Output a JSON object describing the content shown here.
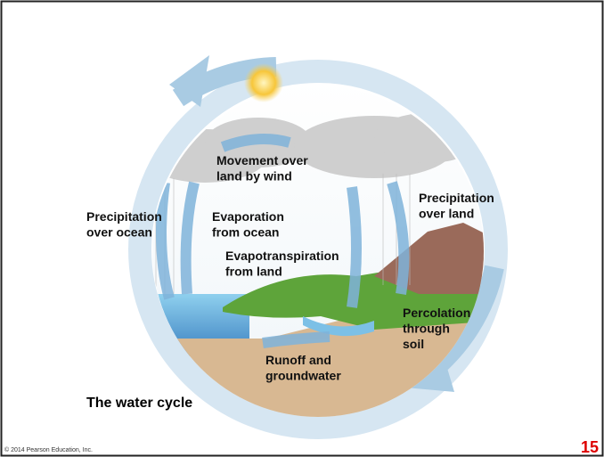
{
  "diagram": {
    "labels": [
      {
        "lines": [
          "Movement over",
          "land by wind"
        ]
      },
      {
        "lines": [
          "Precipitation",
          "over ocean"
        ]
      },
      {
        "lines": [
          "Evaporation",
          "from ocean"
        ]
      },
      {
        "lines": [
          "Precipitation",
          "over land"
        ]
      },
      {
        "lines": [
          "Evapotranspiration",
          "from land"
        ]
      },
      {
        "lines": [
          "Percolation",
          "through",
          "soil"
        ]
      },
      {
        "lines": [
          "Runoff and",
          "groundwater"
        ]
      }
    ],
    "caption": "The water cycle"
  },
  "footer": {
    "copyright": "© 2014 Pearson Education, Inc.",
    "slide_number": "15"
  }
}
